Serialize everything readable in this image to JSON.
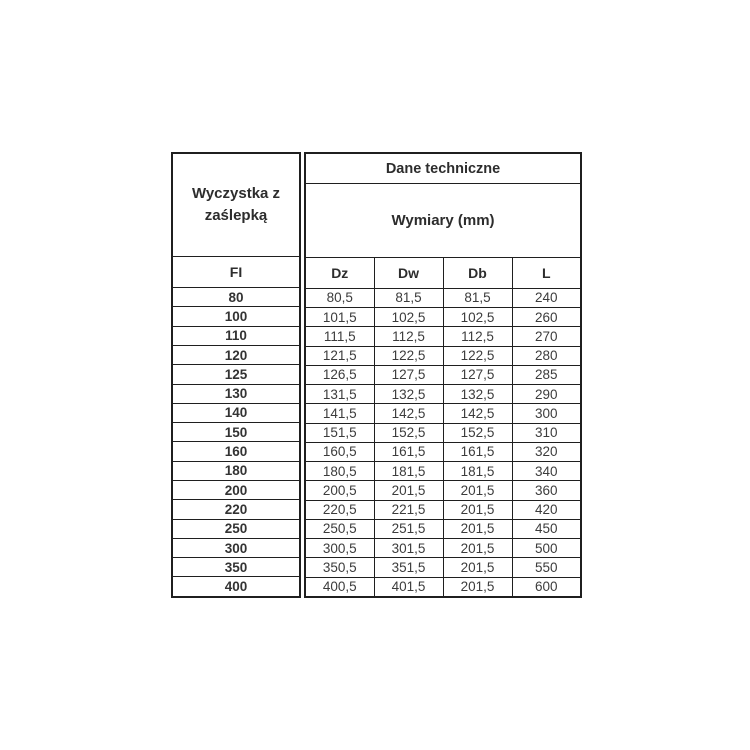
{
  "page": {
    "background": "#ffffff"
  },
  "colors": {
    "border": "#1f1f1f",
    "header_text": "#2d2d2d",
    "value_text": "#3c3c3c",
    "background": "#ffffff"
  },
  "labels": {
    "corner": "Wyczystka z zaślepką",
    "group_header": "Dane techniczne",
    "sub_header": "Wymiary (mm)",
    "fi_header": "FI"
  },
  "chart_data": {
    "type": "table",
    "title": "Dane techniczne",
    "subtitle": "Wymiary (mm)",
    "row_group_label": "Wyczystka z zaślepką",
    "columns": [
      "FI",
      "Dz",
      "Dw",
      "Db",
      "L"
    ],
    "units": "mm",
    "decimal_separator": ",",
    "rows": [
      [
        "80",
        "80,5",
        "81,5",
        "81,5",
        "240"
      ],
      [
        "100",
        "101,5",
        "102,5",
        "102,5",
        "260"
      ],
      [
        "110",
        "111,5",
        "112,5",
        "112,5",
        "270"
      ],
      [
        "120",
        "121,5",
        "122,5",
        "122,5",
        "280"
      ],
      [
        "125",
        "126,5",
        "127,5",
        "127,5",
        "285"
      ],
      [
        "130",
        "131,5",
        "132,5",
        "132,5",
        "290"
      ],
      [
        "140",
        "141,5",
        "142,5",
        "142,5",
        "300"
      ],
      [
        "150",
        "151,5",
        "152,5",
        "152,5",
        "310"
      ],
      [
        "160",
        "160,5",
        "161,5",
        "161,5",
        "320"
      ],
      [
        "180",
        "180,5",
        "181,5",
        "181,5",
        "340"
      ],
      [
        "200",
        "200,5",
        "201,5",
        "201,5",
        "360"
      ],
      [
        "220",
        "220,5",
        "221,5",
        "201,5",
        "420"
      ],
      [
        "250",
        "250,5",
        "251,5",
        "201,5",
        "450"
      ],
      [
        "300",
        "300,5",
        "301,5",
        "201,5",
        "500"
      ],
      [
        "350",
        "350,5",
        "351,5",
        "201,5",
        "550"
      ],
      [
        "400",
        "400,5",
        "401,5",
        "201,5",
        "600"
      ]
    ]
  }
}
